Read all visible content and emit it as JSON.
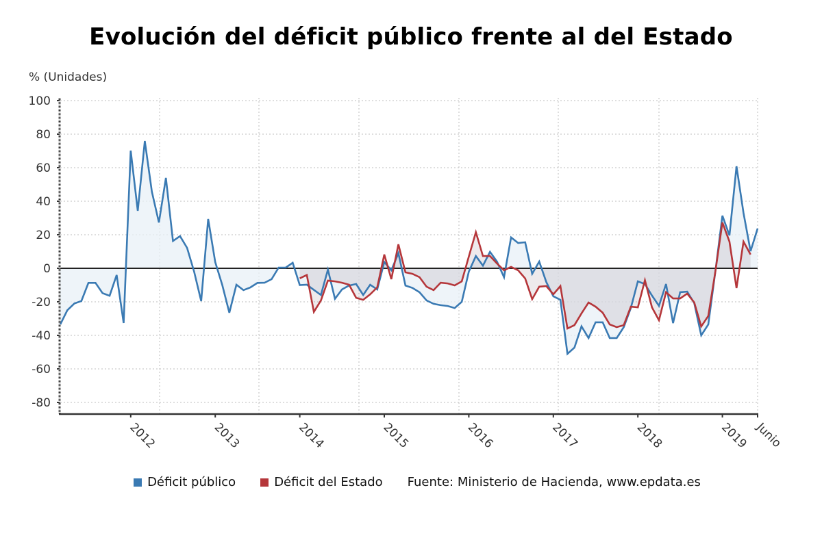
{
  "chart_data": {
    "type": "line",
    "title": "Evolución del déficit público frente al del Estado",
    "ylabel": "% (Unidades)",
    "xlabel": "",
    "ylim": [
      -87,
      102
    ],
    "yticks": [
      100,
      80,
      60,
      40,
      20,
      0,
      -20,
      -40,
      -60,
      -80
    ],
    "xtick_labels": [
      {
        "label": "2012",
        "month_index": 10
      },
      {
        "label": "2013",
        "month_index": 22
      },
      {
        "label": "2014",
        "month_index": 34
      },
      {
        "label": "2015",
        "month_index": 46
      },
      {
        "label": "2016",
        "month_index": 58
      },
      {
        "label": "2017",
        "month_index": 70
      },
      {
        "label": "2018",
        "month_index": 82
      },
      {
        "label": "2019",
        "month_index": 94
      },
      {
        "label": "Junio",
        "month_index": 99
      }
    ],
    "x_start": "2011-03",
    "x_end": "2019-06",
    "grid": true,
    "legend_position": "bottom",
    "source": "Fuente: Ministerio de Hacienda, www.epdata.es",
    "series": [
      {
        "name": "Déficit público",
        "color": "#3a7ab3",
        "fill": "#e8f0f7",
        "start": "2011-03",
        "values": [
          -33.5,
          -25,
          -21,
          -19.5,
          -8.7,
          -8.7,
          -14.8,
          -16.4,
          -4,
          -32.6,
          70.2,
          34.3,
          75.9,
          45.7,
          27.3,
          53.9,
          16.3,
          19.2,
          12.2,
          -2,
          -19.6,
          29.4,
          3.7,
          -10,
          -26.5,
          -9.8,
          -13,
          -11.4,
          -8.7,
          -8.6,
          -6.5,
          0.4,
          0.4,
          3.3,
          -10,
          -9.8,
          -12.9,
          -15.9,
          -0.8,
          -18.2,
          -12.6,
          -10.3,
          -9.4,
          -15.9,
          -9.8,
          -12.6,
          3.7,
          -1.2,
          9,
          -10.3,
          -11.7,
          -14.3,
          -19.2,
          -21.2,
          -22,
          -22.5,
          -23.7,
          -20,
          -2,
          7.3,
          1.6,
          9.8,
          4,
          -5.3,
          18.4,
          15.1,
          15.5,
          -3.3,
          4,
          -8.2,
          -16.7,
          -18.8,
          -51,
          -47.3,
          -34.6,
          -41.6,
          -32.2,
          -32.2,
          -41.6,
          -41.6,
          -35.1,
          -23.7,
          -7.8,
          -9.4,
          -16.3,
          -22.4,
          -9.4,
          -32.7,
          -14.3,
          -13.9,
          -20.8,
          -40,
          -33.5,
          -2,
          31.4,
          19.6,
          60.8,
          33,
          10.2,
          23.7
        ]
      },
      {
        "name": "Déficit del Estado",
        "color": "#b5363a",
        "fill": "#b5363a",
        "start": "2014-01",
        "values": [
          -6,
          -4,
          -26,
          -19.2,
          -7.3,
          -7.8,
          -8.6,
          -9.8,
          -17.6,
          -18.8,
          -15.5,
          -11.4,
          8.2,
          -6.5,
          14.3,
          -2.4,
          -3.3,
          -5.3,
          -11,
          -13,
          -8.6,
          -9,
          -10.2,
          -7.8,
          7,
          21.5,
          7.3,
          7.3,
          2.9,
          -1.2,
          0.8,
          -1.2,
          -6.1,
          -18.4,
          -11,
          -10.6,
          -15.5,
          -10.6,
          -35.9,
          -33.9,
          -26.9,
          -20.4,
          -22.9,
          -26.5,
          -33.5,
          -35.1,
          -33.9,
          -22.9,
          -23.3,
          -7.1,
          -23.3,
          -31,
          -14.3,
          -18,
          -18,
          -15.1,
          -20.4,
          -34.7,
          -28.4,
          -2,
          27.3,
          15.9,
          -11.8,
          15.9,
          8.2
        ]
      }
    ]
  },
  "legend": {
    "items": [
      {
        "label": "Déficit público",
        "color": "#3a7ab3"
      },
      {
        "label": "Déficit del Estado",
        "color": "#b5363a"
      }
    ],
    "source": "Fuente: Ministerio de Hacienda, www.epdata.es"
  }
}
